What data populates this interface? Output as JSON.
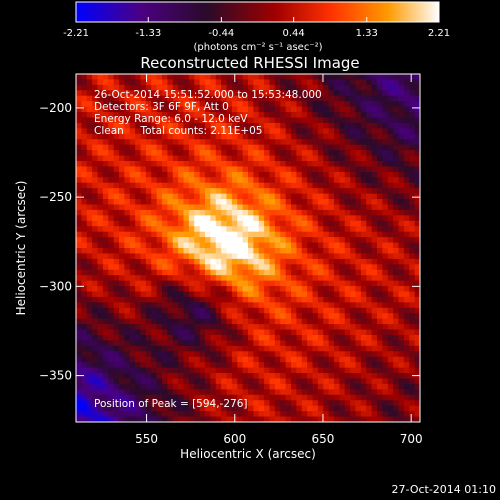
{
  "chart_data": {
    "type": "heatmap",
    "title": "Reconstructed RHESSI Image",
    "xlabel": "Heliocentric X (arcsec)",
    "ylabel": "Heliocentric Y (arcsec)",
    "xlim": [
      510,
      705
    ],
    "ylim": [
      -376,
      -181
    ],
    "x_ticks": [
      550,
      600,
      650,
      700
    ],
    "y_ticks": [
      -200,
      -250,
      -300,
      -350
    ],
    "colorbar": {
      "range": [
        -2.21,
        2.21
      ],
      "ticks": [
        "-2.21",
        "-1.33",
        "-0.44",
        "0.44",
        "1.33",
        "2.21"
      ],
      "unit_label": "(photons cm⁻² s⁻¹ asec⁻²)",
      "colors": [
        "#0000ff",
        "#4b0082",
        "#2a0a2a",
        "#a00000",
        "#ff3000",
        "#ff9a00",
        "#ffffff"
      ]
    },
    "annotations": [
      "26-Oct-2014 15:51:52.000 to 15:53:48.000",
      "Detectors: 3F 6F 9F, Att 0",
      "Energy Range: 6.0 - 12.0 keV",
      "Clean     Total counts: 2.11E+05"
    ],
    "peak_label": "Position of Peak = [594,-276]",
    "peak": [
      594,
      -276
    ]
  },
  "footer": {
    "timestamp": "27-Oct-2014 01:10"
  }
}
